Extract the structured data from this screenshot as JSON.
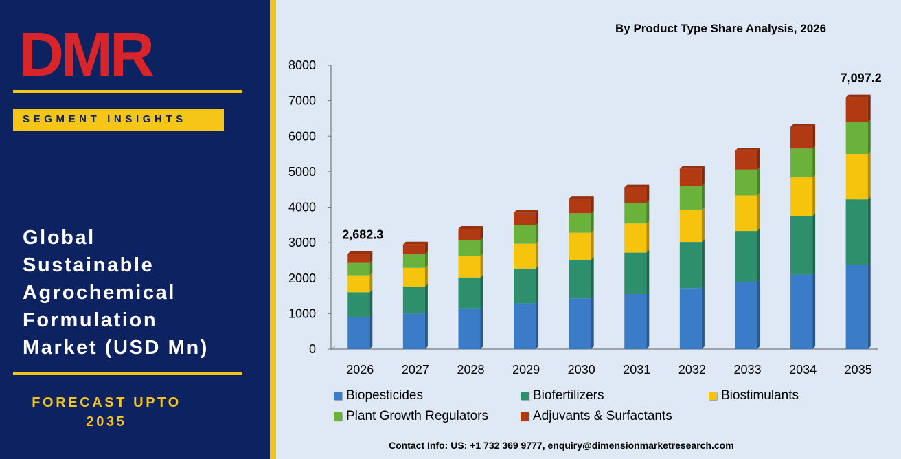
{
  "brand": {
    "logo_text": "DMR",
    "segment_label": "SEGMENT INSIGHTS"
  },
  "report": {
    "title_lines": [
      "Global",
      "Sustainable",
      "Agrochemical",
      "Formulation",
      "Market (USD Mn)"
    ],
    "forecast_lines": [
      "FORECAST UPTO",
      "2035"
    ]
  },
  "contact": "Contact Info: US: +1 732 369 9777, enquiry@dimensionmarketresearch.com",
  "colors": {
    "panel": "#0d2260",
    "accent": "#f5c518",
    "background": "#dfe9f5"
  },
  "chart_data": {
    "type": "bar",
    "stacked": true,
    "title": "By Product Type Share Analysis, 2026",
    "categories": [
      "2026",
      "2027",
      "2028",
      "2029",
      "2030",
      "2031",
      "2032",
      "2033",
      "2034",
      "2035"
    ],
    "ylim": [
      0,
      8000
    ],
    "yticks": [
      0,
      1000,
      2000,
      3000,
      4000,
      5000,
      6000,
      7000,
      8000
    ],
    "grid": false,
    "legend_position": "bottom",
    "series": [
      {
        "name": "Biopesticides",
        "color": "#3a7cc7",
        "values": [
          900,
          1000,
          1150,
          1290,
          1430,
          1550,
          1720,
          1880,
          2100,
          2370
        ]
      },
      {
        "name": "Biofertilizers",
        "color": "#2e8f6c",
        "values": [
          700,
          760,
          870,
          980,
          1090,
          1170,
          1300,
          1450,
          1650,
          1850
        ]
      },
      {
        "name": "Biostimulants",
        "color": "#f6c40c",
        "values": [
          480,
          530,
          600,
          700,
          760,
          820,
          910,
          1000,
          1090,
          1280
        ]
      },
      {
        "name": "Plant Growth Regulators",
        "color": "#6bb23a",
        "values": [
          350,
          380,
          440,
          520,
          550,
          580,
          660,
          730,
          810,
          900
        ]
      },
      {
        "name": "Adjuvants & Surfactants",
        "color": "#b23a13",
        "values": [
          252,
          280,
          330,
          350,
          410,
          440,
          490,
          530,
          610,
          697
        ]
      }
    ],
    "annotations": [
      {
        "category": "2026",
        "text": "2,682.3"
      },
      {
        "category": "2035",
        "text": "7,097.2"
      }
    ]
  }
}
